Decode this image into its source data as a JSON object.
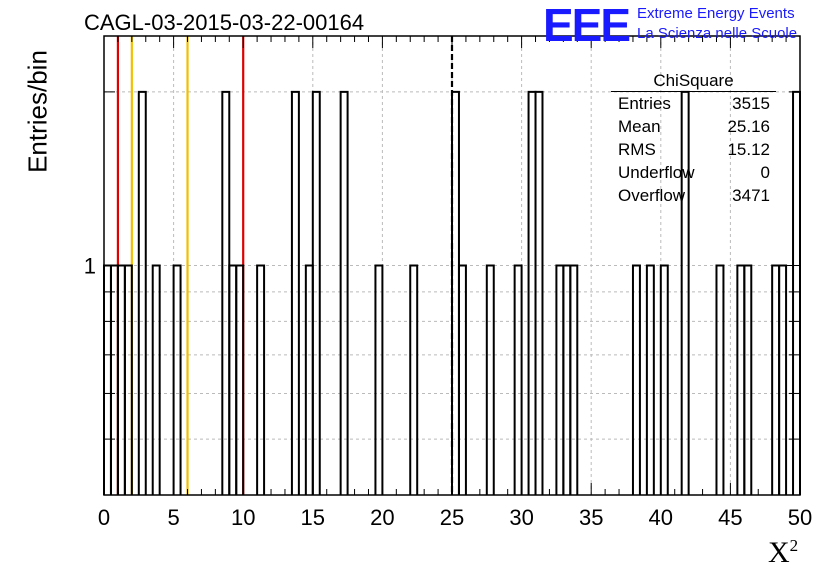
{
  "chart_data": {
    "type": "histogram",
    "title": "CAGL-03-2015-03-22-00164",
    "xlabel": "X",
    "xlabel_superscript": "2",
    "ylabel": "Entries/bin",
    "xlim": [
      0,
      50
    ],
    "ylim": [
      0.4,
      2.5
    ],
    "yscale": "log",
    "grid": true,
    "bin_width": 0.5,
    "x_ticks": [
      "0",
      "5",
      "10",
      "15",
      "20",
      "25",
      "30",
      "35",
      "40",
      "45",
      "50"
    ],
    "y_ticks": [
      "1"
    ],
    "bins": [
      {
        "x": 0.0,
        "y": 1
      },
      {
        "x": 0.5,
        "y": 1
      },
      {
        "x": 1.0,
        "y": 1
      },
      {
        "x": 1.5,
        "y": 1
      },
      {
        "x": 2.5,
        "y": 2
      },
      {
        "x": 3.5,
        "y": 1
      },
      {
        "x": 5.0,
        "y": 1
      },
      {
        "x": 8.5,
        "y": 2
      },
      {
        "x": 9.0,
        "y": 1
      },
      {
        "x": 9.5,
        "y": 1
      },
      {
        "x": 11.0,
        "y": 1
      },
      {
        "x": 13.5,
        "y": 2
      },
      {
        "x": 14.5,
        "y": 1
      },
      {
        "x": 15.0,
        "y": 2
      },
      {
        "x": 17.0,
        "y": 2
      },
      {
        "x": 19.5,
        "y": 1
      },
      {
        "x": 22.0,
        "y": 1
      },
      {
        "x": 25.0,
        "y": 2
      },
      {
        "x": 25.5,
        "y": 1
      },
      {
        "x": 27.5,
        "y": 1
      },
      {
        "x": 29.5,
        "y": 1
      },
      {
        "x": 30.5,
        "y": 2
      },
      {
        "x": 31.0,
        "y": 2
      },
      {
        "x": 32.5,
        "y": 1
      },
      {
        "x": 33.0,
        "y": 1
      },
      {
        "x": 33.5,
        "y": 1
      },
      {
        "x": 38.0,
        "y": 1
      },
      {
        "x": 39.0,
        "y": 1
      },
      {
        "x": 40.0,
        "y": 1
      },
      {
        "x": 41.5,
        "y": 2
      },
      {
        "x": 44.0,
        "y": 1
      },
      {
        "x": 45.5,
        "y": 1
      },
      {
        "x": 46.0,
        "y": 1
      },
      {
        "x": 48.0,
        "y": 1
      },
      {
        "x": 48.5,
        "y": 1
      },
      {
        "x": 49.5,
        "y": 2
      }
    ],
    "vertical_lines": [
      {
        "x": 1,
        "color": "#e00000",
        "style": "solid"
      },
      {
        "x": 2,
        "color": "#f0c000",
        "style": "solid"
      },
      {
        "x": 6,
        "color": "#f0c000",
        "style": "solid"
      },
      {
        "x": 10,
        "color": "#e00000",
        "style": "solid"
      },
      {
        "x": 25,
        "color": "#000000",
        "style": "dashed"
      }
    ],
    "stats_box": {
      "title": "ChiSquare",
      "rows": [
        {
          "label": "Entries",
          "value": "3515"
        },
        {
          "label": "Mean",
          "value": "25.16"
        },
        {
          "label": "RMS",
          "value": "15.12"
        },
        {
          "label": "Underflow",
          "value": "0"
        },
        {
          "label": "Overflow",
          "value": "3471"
        }
      ]
    }
  },
  "logo": {
    "mark": "EEE",
    "line1": "Extreme Energy Events",
    "line2": "La Scienza nelle Scuole",
    "color": "#1a1aff"
  }
}
